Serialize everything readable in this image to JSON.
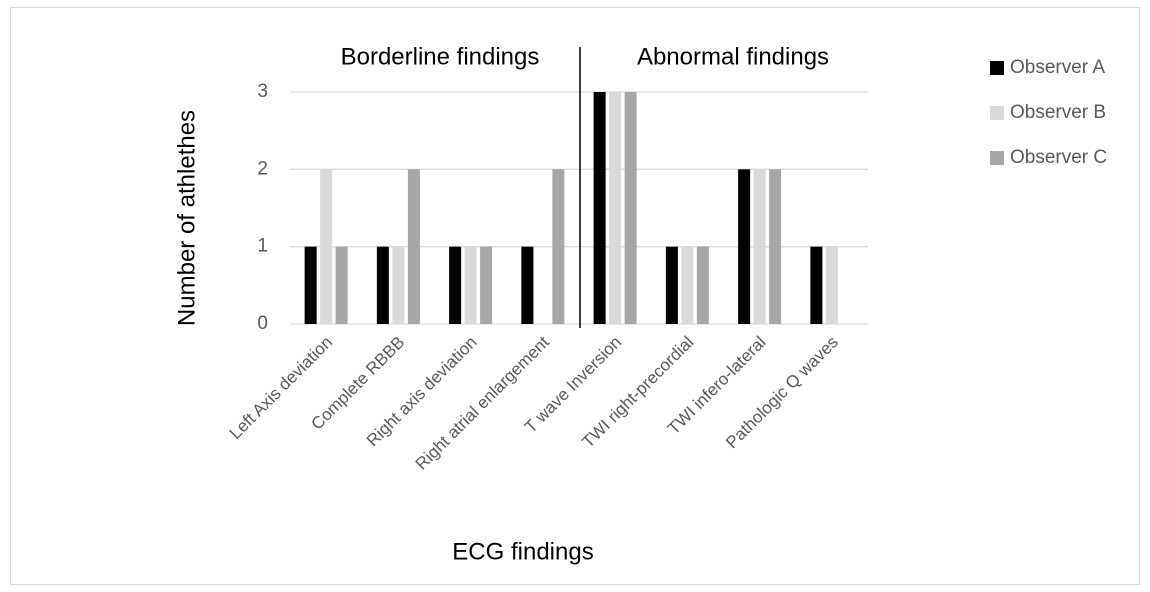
{
  "chart_data": {
    "type": "bar",
    "y_label": "Number of athlethes",
    "x_label": "ECG findings",
    "annotations": [
      "Borderline findings",
      "Abnormal findings"
    ],
    "categories": [
      "Left Axis deviation",
      "Complete RBBB",
      "Right axis deviation",
      "Right atrial enlargement",
      "T wave Inversion",
      "TWI right-precordial",
      "TWI infero-lateral",
      "Pathologic Q waves"
    ],
    "series": [
      {
        "name": "Observer A",
        "color": "#000000",
        "values": [
          1,
          1,
          1,
          1,
          3,
          1,
          2,
          1
        ]
      },
      {
        "name": "Observer B",
        "color": "#d9d9d9",
        "values": [
          2,
          1,
          1,
          0,
          3,
          1,
          2,
          1
        ]
      },
      {
        "name": "Observer C",
        "color": "#a6a6a6",
        "values": [
          1,
          2,
          1,
          2,
          3,
          1,
          2,
          0
        ]
      }
    ],
    "ylim": [
      0,
      3
    ],
    "yticks": [
      0,
      1,
      2,
      3
    ],
    "grid": true,
    "legend": "right"
  }
}
